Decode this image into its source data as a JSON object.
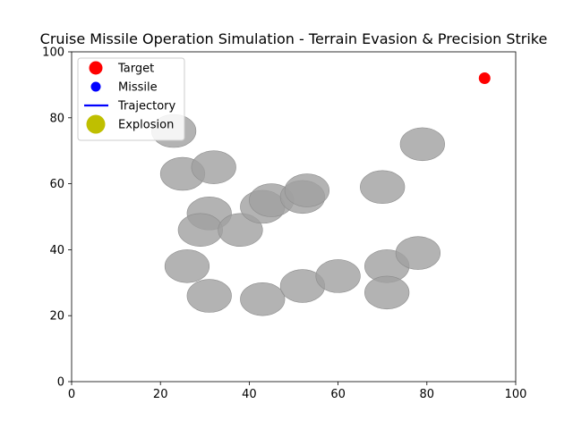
{
  "chart_data": {
    "type": "scatter",
    "title": "Cruise Missile Operation Simulation - Terrain Evasion & Precision Strike",
    "xlabel": "",
    "ylabel": "",
    "xlim": [
      0,
      100
    ],
    "ylim": [
      0,
      100
    ],
    "x_ticks": [
      0,
      20,
      40,
      60,
      80,
      100
    ],
    "y_ticks": [
      0,
      20,
      40,
      60,
      80,
      100
    ],
    "grid": false,
    "legend_position": "top-left",
    "legend": [
      {
        "label": "Target",
        "marker": "circle",
        "color": "#ff0000"
      },
      {
        "label": "Missile",
        "marker": "circle",
        "color": "#0000ff"
      },
      {
        "label": "Trajectory",
        "marker": "line",
        "color": "#0000ff"
      },
      {
        "label": "Explosion",
        "marker": "circle",
        "color": "#bfbf00"
      }
    ],
    "target": {
      "x": 93,
      "y": 92,
      "color": "#ff0000"
    },
    "obstacle_color": "#a0a0a0",
    "obstacle_radius": 5,
    "obstacles": [
      {
        "x": 23,
        "y": 76
      },
      {
        "x": 25,
        "y": 63
      },
      {
        "x": 32,
        "y": 65
      },
      {
        "x": 31,
        "y": 51
      },
      {
        "x": 29,
        "y": 46
      },
      {
        "x": 38,
        "y": 46
      },
      {
        "x": 43,
        "y": 53
      },
      {
        "x": 45,
        "y": 55
      },
      {
        "x": 52,
        "y": 56
      },
      {
        "x": 53,
        "y": 58
      },
      {
        "x": 70,
        "y": 59
      },
      {
        "x": 79,
        "y": 72
      },
      {
        "x": 26,
        "y": 35
      },
      {
        "x": 31,
        "y": 26
      },
      {
        "x": 43,
        "y": 25
      },
      {
        "x": 52,
        "y": 29
      },
      {
        "x": 60,
        "y": 32
      },
      {
        "x": 71,
        "y": 35
      },
      {
        "x": 71,
        "y": 27
      },
      {
        "x": 78,
        "y": 39
      }
    ]
  }
}
